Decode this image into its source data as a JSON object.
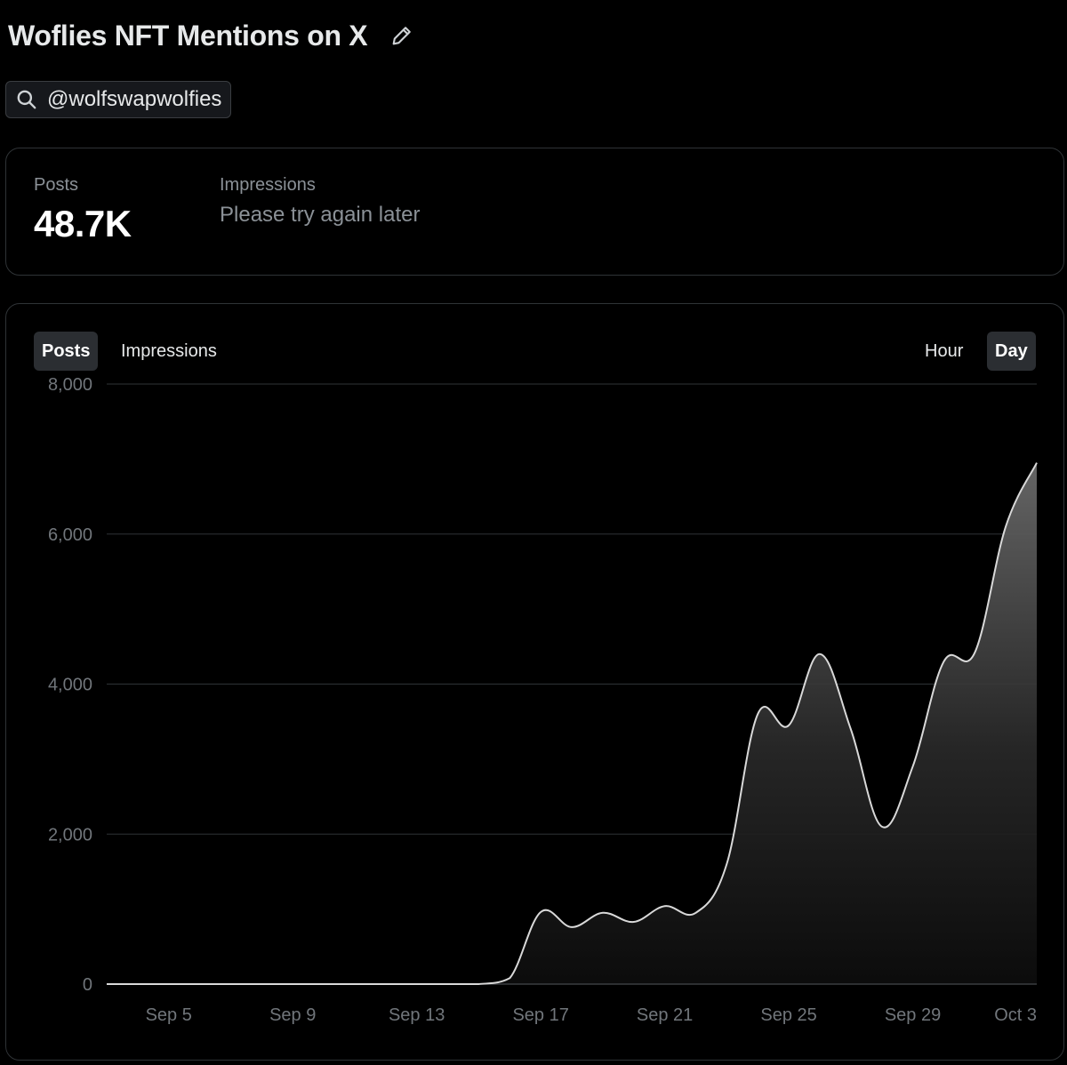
{
  "header": {
    "title": "Woflies NFT Mentions on X",
    "edit_icon": "pencil-icon"
  },
  "search": {
    "icon": "search-icon",
    "query": "@wolfswapwolfies"
  },
  "stats": {
    "posts_label": "Posts",
    "posts_value": "48.7K",
    "impressions_label": "Impressions",
    "impressions_value": "Please try again later"
  },
  "chart_tabs": {
    "metric_tabs": [
      "Posts",
      "Impressions"
    ],
    "active_metric": "Posts",
    "interval_tabs": [
      "Hour",
      "Day"
    ],
    "active_interval": "Day"
  },
  "colors": {
    "background": "#000000",
    "line": "#d9d9d9",
    "grid": "#2f3336",
    "tick_text": "#71767b"
  },
  "chart_data": {
    "type": "area",
    "x": [
      "Sep 3",
      "Sep 4",
      "Sep 5",
      "Sep 6",
      "Sep 7",
      "Sep 8",
      "Sep 9",
      "Sep 10",
      "Sep 11",
      "Sep 12",
      "Sep 13",
      "Sep 14",
      "Sep 15",
      "Sep 16",
      "Sep 17",
      "Sep 18",
      "Sep 19",
      "Sep 20",
      "Sep 21",
      "Sep 22",
      "Sep 23",
      "Sep 24",
      "Sep 25",
      "Sep 26",
      "Sep 27",
      "Sep 28",
      "Sep 29",
      "Sep 30",
      "Oct 1",
      "Oct 2",
      "Oct 3"
    ],
    "series": [
      {
        "values": [
          0,
          0,
          0,
          0,
          0,
          0,
          0,
          0,
          0,
          0,
          0,
          0,
          0,
          80,
          960,
          760,
          950,
          830,
          1040,
          950,
          1600,
          3600,
          3450,
          4400,
          3400,
          2100,
          2900,
          4300,
          4420,
          6100,
          6950
        ]
      }
    ],
    "x_tick_labels": [
      "Sep 5",
      "Sep 9",
      "Sep 13",
      "Sep 17",
      "Sep 21",
      "Sep 25",
      "Sep 29",
      "Oct 3"
    ],
    "y_tick_labels": [
      "0",
      "2,000",
      "4,000",
      "6,000",
      "8,000"
    ],
    "y_ticks": [
      0,
      2000,
      4000,
      6000,
      8000
    ],
    "ylim": [
      0,
      8000
    ],
    "grid": true,
    "legend": "none"
  }
}
